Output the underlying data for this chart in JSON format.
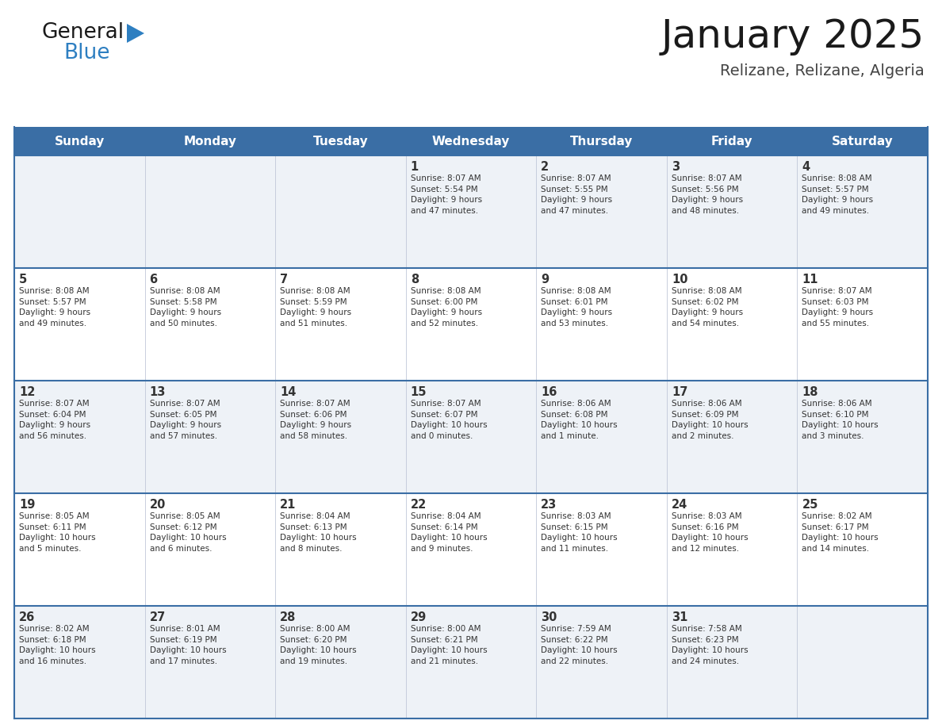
{
  "title": "January 2025",
  "subtitle": "Relizane, Relizane, Algeria",
  "header_color": "#3a6ea5",
  "header_text_color": "#ffffff",
  "cell_bg_even": "#eef2f7",
  "cell_bg_odd": "#ffffff",
  "border_color": "#3a6ea5",
  "cell_line_color": "#c0c8d8",
  "text_color": "#333333",
  "logo_text_color": "#1a1a1a",
  "logo_blue_color": "#2e7fc1",
  "title_color": "#1a1a1a",
  "subtitle_color": "#444444",
  "days_of_week": [
    "Sunday",
    "Monday",
    "Tuesday",
    "Wednesday",
    "Thursday",
    "Friday",
    "Saturday"
  ],
  "calendar_data": [
    [
      {
        "day": "",
        "info": ""
      },
      {
        "day": "",
        "info": ""
      },
      {
        "day": "",
        "info": ""
      },
      {
        "day": "1",
        "info": "Sunrise: 8:07 AM\nSunset: 5:54 PM\nDaylight: 9 hours\nand 47 minutes."
      },
      {
        "day": "2",
        "info": "Sunrise: 8:07 AM\nSunset: 5:55 PM\nDaylight: 9 hours\nand 47 minutes."
      },
      {
        "day": "3",
        "info": "Sunrise: 8:07 AM\nSunset: 5:56 PM\nDaylight: 9 hours\nand 48 minutes."
      },
      {
        "day": "4",
        "info": "Sunrise: 8:08 AM\nSunset: 5:57 PM\nDaylight: 9 hours\nand 49 minutes."
      }
    ],
    [
      {
        "day": "5",
        "info": "Sunrise: 8:08 AM\nSunset: 5:57 PM\nDaylight: 9 hours\nand 49 minutes."
      },
      {
        "day": "6",
        "info": "Sunrise: 8:08 AM\nSunset: 5:58 PM\nDaylight: 9 hours\nand 50 minutes."
      },
      {
        "day": "7",
        "info": "Sunrise: 8:08 AM\nSunset: 5:59 PM\nDaylight: 9 hours\nand 51 minutes."
      },
      {
        "day": "8",
        "info": "Sunrise: 8:08 AM\nSunset: 6:00 PM\nDaylight: 9 hours\nand 52 minutes."
      },
      {
        "day": "9",
        "info": "Sunrise: 8:08 AM\nSunset: 6:01 PM\nDaylight: 9 hours\nand 53 minutes."
      },
      {
        "day": "10",
        "info": "Sunrise: 8:08 AM\nSunset: 6:02 PM\nDaylight: 9 hours\nand 54 minutes."
      },
      {
        "day": "11",
        "info": "Sunrise: 8:07 AM\nSunset: 6:03 PM\nDaylight: 9 hours\nand 55 minutes."
      }
    ],
    [
      {
        "day": "12",
        "info": "Sunrise: 8:07 AM\nSunset: 6:04 PM\nDaylight: 9 hours\nand 56 minutes."
      },
      {
        "day": "13",
        "info": "Sunrise: 8:07 AM\nSunset: 6:05 PM\nDaylight: 9 hours\nand 57 minutes."
      },
      {
        "day": "14",
        "info": "Sunrise: 8:07 AM\nSunset: 6:06 PM\nDaylight: 9 hours\nand 58 minutes."
      },
      {
        "day": "15",
        "info": "Sunrise: 8:07 AM\nSunset: 6:07 PM\nDaylight: 10 hours\nand 0 minutes."
      },
      {
        "day": "16",
        "info": "Sunrise: 8:06 AM\nSunset: 6:08 PM\nDaylight: 10 hours\nand 1 minute."
      },
      {
        "day": "17",
        "info": "Sunrise: 8:06 AM\nSunset: 6:09 PM\nDaylight: 10 hours\nand 2 minutes."
      },
      {
        "day": "18",
        "info": "Sunrise: 8:06 AM\nSunset: 6:10 PM\nDaylight: 10 hours\nand 3 minutes."
      }
    ],
    [
      {
        "day": "19",
        "info": "Sunrise: 8:05 AM\nSunset: 6:11 PM\nDaylight: 10 hours\nand 5 minutes."
      },
      {
        "day": "20",
        "info": "Sunrise: 8:05 AM\nSunset: 6:12 PM\nDaylight: 10 hours\nand 6 minutes."
      },
      {
        "day": "21",
        "info": "Sunrise: 8:04 AM\nSunset: 6:13 PM\nDaylight: 10 hours\nand 8 minutes."
      },
      {
        "day": "22",
        "info": "Sunrise: 8:04 AM\nSunset: 6:14 PM\nDaylight: 10 hours\nand 9 minutes."
      },
      {
        "day": "23",
        "info": "Sunrise: 8:03 AM\nSunset: 6:15 PM\nDaylight: 10 hours\nand 11 minutes."
      },
      {
        "day": "24",
        "info": "Sunrise: 8:03 AM\nSunset: 6:16 PM\nDaylight: 10 hours\nand 12 minutes."
      },
      {
        "day": "25",
        "info": "Sunrise: 8:02 AM\nSunset: 6:17 PM\nDaylight: 10 hours\nand 14 minutes."
      }
    ],
    [
      {
        "day": "26",
        "info": "Sunrise: 8:02 AM\nSunset: 6:18 PM\nDaylight: 10 hours\nand 16 minutes."
      },
      {
        "day": "27",
        "info": "Sunrise: 8:01 AM\nSunset: 6:19 PM\nDaylight: 10 hours\nand 17 minutes."
      },
      {
        "day": "28",
        "info": "Sunrise: 8:00 AM\nSunset: 6:20 PM\nDaylight: 10 hours\nand 19 minutes."
      },
      {
        "day": "29",
        "info": "Sunrise: 8:00 AM\nSunset: 6:21 PM\nDaylight: 10 hours\nand 21 minutes."
      },
      {
        "day": "30",
        "info": "Sunrise: 7:59 AM\nSunset: 6:22 PM\nDaylight: 10 hours\nand 22 minutes."
      },
      {
        "day": "31",
        "info": "Sunrise: 7:58 AM\nSunset: 6:23 PM\nDaylight: 10 hours\nand 24 minutes."
      },
      {
        "day": "",
        "info": ""
      }
    ]
  ],
  "figsize": [
    11.88,
    9.18
  ],
  "dpi": 100
}
